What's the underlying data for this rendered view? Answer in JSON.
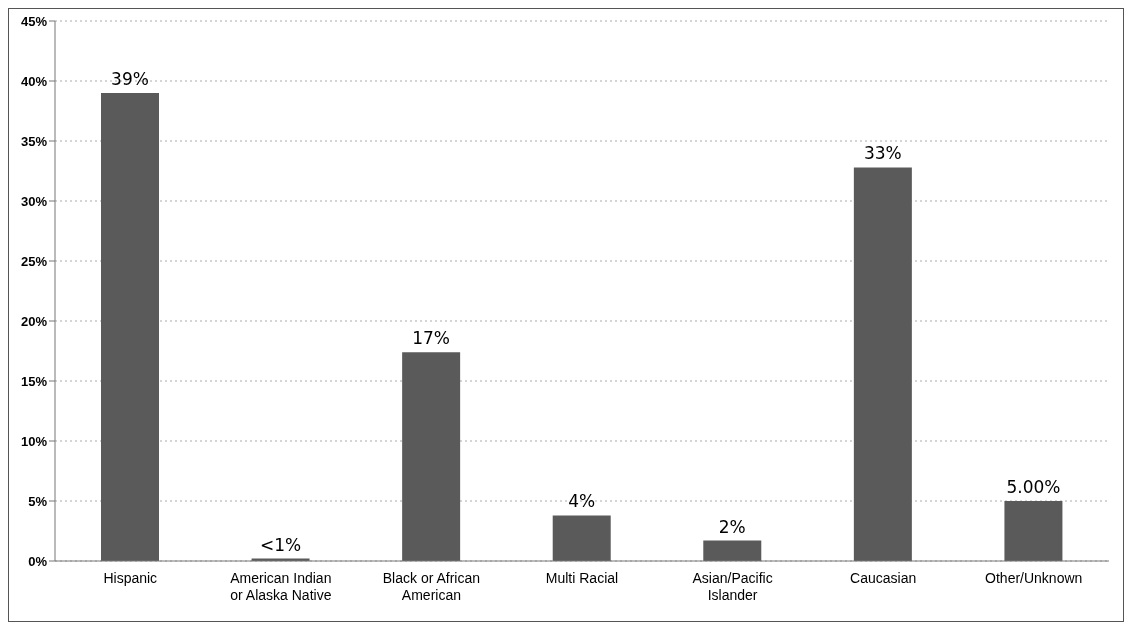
{
  "chart_data": {
    "type": "bar",
    "categories": [
      "Hispanic",
      "American Indian or Alaska Native",
      "Black or African American",
      "Multi Racial",
      "Asian/Pacific Islander",
      "Caucasian",
      "Other/Unknown"
    ],
    "values": [
      39,
      0.2,
      17.4,
      3.8,
      1.7,
      32.8,
      5
    ],
    "value_labels": [
      "39%",
      "<1%",
      "17%",
      "4%",
      "2%",
      "33%",
      "5.00%"
    ],
    "color": "#5a5a5a",
    "ylim": [
      0,
      45
    ],
    "yticks": [
      {
        "value": 0,
        "label": "0%"
      },
      {
        "value": 5,
        "label": "5%"
      },
      {
        "value": 10,
        "label": "10%"
      },
      {
        "value": 15,
        "label": "15%"
      },
      {
        "value": 20,
        "label": "20%"
      },
      {
        "value": 25,
        "label": "25%"
      },
      {
        "value": 30,
        "label": "30%"
      },
      {
        "value": 35,
        "label": "35%"
      },
      {
        "value": 40,
        "label": "40%"
      },
      {
        "value": 45,
        "label": "45%"
      }
    ],
    "grid": "y",
    "legend": false
  }
}
